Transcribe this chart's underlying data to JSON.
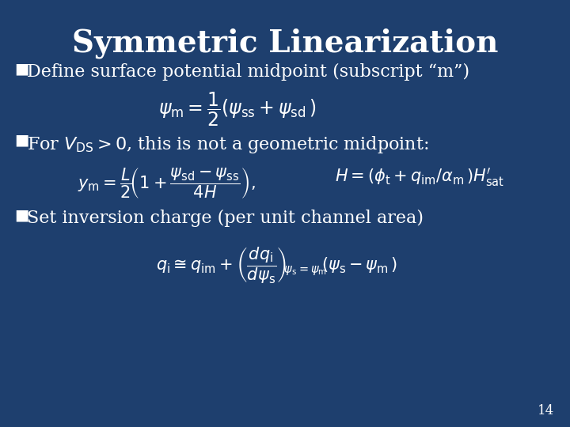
{
  "background_color": "#1e3f6e",
  "title": "Symmetric Linearization",
  "title_fontsize": 28,
  "bullet_fontsize": 16,
  "eq1_fontsize": 17,
  "eq2a_fontsize": 15,
  "eq2b_fontsize": 15,
  "eq3_fontsize": 15,
  "page_number": "14",
  "bullet1": "Define surface potential midpoint (subscript “m”)",
  "bullet2_pre": "For $V_{\\mathrm{DS}} > 0$, this is not a geometric midpoint:",
  "bullet3": "Set inversion charge (per unit channel area)"
}
